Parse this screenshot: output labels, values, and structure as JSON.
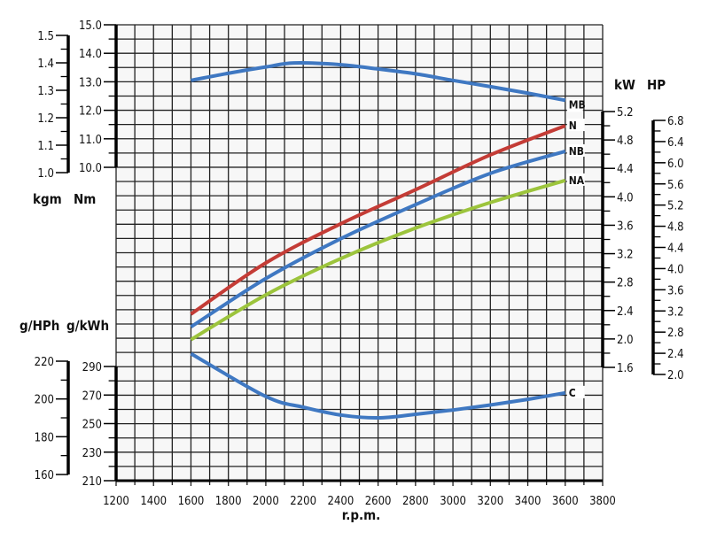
{
  "chart_data": {
    "type": "line",
    "xlabel": "r.p.m.",
    "xlim": [
      1200,
      3800
    ],
    "x_ticks": [
      1200,
      1400,
      1600,
      1800,
      2000,
      2200,
      2400,
      2600,
      2800,
      3000,
      3200,
      3400,
      3600,
      3800
    ],
    "grid": true,
    "axes": {
      "torque_nm": {
        "unit": "Nm",
        "range": [
          10.0,
          15.0
        ],
        "ticks": [
          "10.0",
          "11.0",
          "12.0",
          "13.0",
          "14.0",
          "15.0"
        ]
      },
      "torque_kgm": {
        "unit": "kgm",
        "range": [
          1.0,
          1.5
        ],
        "ticks": [
          "1.0",
          "1.1",
          "1.2",
          "1.3",
          "1.4",
          "1.5"
        ]
      },
      "power_kw": {
        "unit": "kW",
        "range": [
          1.6,
          5.2
        ],
        "ticks": [
          "1.6",
          "2.0",
          "2.4",
          "2.8",
          "3.2",
          "3.6",
          "4.0",
          "4.4",
          "4.8",
          "5.2"
        ]
      },
      "power_hp": {
        "unit": "HP",
        "range": [
          2.0,
          6.8
        ],
        "ticks": [
          "2.0",
          "2.4",
          "2.8",
          "3.2",
          "3.6",
          "4.0",
          "4.4",
          "4.8",
          "5.2",
          "5.6",
          "6.0",
          "6.4",
          "6.8"
        ]
      },
      "consumption_gkwh": {
        "unit": "g/kWh",
        "range": [
          210,
          290
        ],
        "ticks": [
          "210",
          "230",
          "250",
          "270",
          "290"
        ]
      },
      "consumption_ghph": {
        "unit": "g/HPh",
        "range": [
          160,
          220
        ],
        "ticks": [
          "160",
          "180",
          "200",
          "220"
        ]
      }
    },
    "series": [
      {
        "name": "MB",
        "axis": "torque_nm",
        "color": "#3f78c2",
        "x": [
          1600,
          1800,
          2000,
          2150,
          2400,
          2600,
          2800,
          3000,
          3200,
          3400,
          3600
        ],
        "y": [
          13.05,
          13.3,
          13.52,
          13.66,
          13.6,
          13.45,
          13.28,
          13.05,
          12.83,
          12.6,
          12.35
        ]
      },
      {
        "name": "N",
        "axis": "power_kw",
        "color": "#c43c36",
        "x": [
          1600,
          2000,
          2400,
          2800,
          3200,
          3600
        ],
        "y": [
          2.35,
          3.07,
          3.62,
          4.1,
          4.59,
          5.0
        ]
      },
      {
        "name": "NB",
        "axis": "power_kw",
        "color": "#3f78c2",
        "x": [
          1600,
          2000,
          2400,
          2800,
          3200,
          3600
        ],
        "y": [
          2.17,
          2.85,
          3.41,
          3.89,
          4.33,
          4.64
        ]
      },
      {
        "name": "NA",
        "axis": "power_kw",
        "color": "#9cc43c",
        "x": [
          1600,
          2000,
          2400,
          2800,
          3200,
          3600
        ],
        "y": [
          1.99,
          2.62,
          3.13,
          3.56,
          3.92,
          4.23
        ]
      },
      {
        "name": "C",
        "axis": "consumption_gkwh",
        "color": "#3f78c2",
        "x": [
          1600,
          2000,
          2200,
          2400,
          2600,
          2800,
          3000,
          3200,
          3400,
          3600
        ],
        "y": [
          299,
          269,
          261.5,
          256,
          254,
          256.5,
          259.5,
          263,
          267,
          271.5
        ]
      }
    ]
  }
}
